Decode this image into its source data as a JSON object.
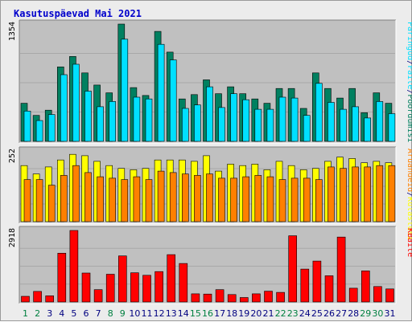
{
  "page_title": "Kasutuspäevad Mai 2021",
  "colors": {
    "title": "#0000cc",
    "panel_bg": "#c0c0c0",
    "visits": "#008060",
    "files": "#00e0ff",
    "hits": "#ffff00",
    "pages": "#ff8000",
    "kbytes": "#ff0000",
    "weekday_label": "#000080",
    "weekend_label": "#008040"
  },
  "chart_data": {
    "type": "bar",
    "x_labels": [
      "1",
      "2",
      "3",
      "4",
      "5",
      "6",
      "7",
      "8",
      "9",
      "10",
      "11",
      "12",
      "13",
      "14",
      "15",
      "16",
      "17",
      "18",
      "19",
      "20",
      "21",
      "22",
      "23",
      "24",
      "25",
      "26",
      "27",
      "28",
      "29",
      "30",
      "31"
    ],
    "weekend_days": [
      "1",
      "2",
      "8",
      "9",
      "15",
      "16",
      "22",
      "23",
      "29",
      "30"
    ],
    "panels": [
      {
        "ymax_label": "1354",
        "right_labels": [
          {
            "text": "Päringud",
            "color": "#00e0ff"
          },
          {
            "text": "/",
            "color": "#000080"
          },
          {
            "text": "Faile",
            "color": "#00e0ff"
          },
          {
            "text": "/",
            "color": "#000080"
          },
          {
            "text": "Pöördumisi",
            "color": "#008060"
          }
        ],
        "ymax": 1354,
        "series": [
          {
            "name": "Päringud",
            "values": [
              440,
              300,
              360,
              860,
              980,
              790,
              650,
              560,
              1354,
              620,
              530,
              1270,
              1030,
              490,
              540,
              710,
              550,
              630,
              550,
              490,
              440,
              610,
              610,
              380,
              790,
              610,
              500,
              610,
              330,
              560,
              440
            ]
          },
          {
            "name": "Faile",
            "values": [
              350,
              240,
              310,
              770,
              890,
              580,
              400,
              460,
              1180,
              510,
              490,
              1120,
              940,
              380,
              420,
              630,
              390,
              550,
              480,
              370,
              370,
              510,
              500,
              300,
              670,
              450,
              370,
              400,
              270,
              460,
              320
            ]
          }
        ]
      },
      {
        "ymax_label": "252",
        "right_labels": [
          {
            "text": "Aruandeid",
            "color": "#ff8000"
          },
          {
            "text": "/",
            "color": "#000080"
          },
          {
            "text": "Külastusi",
            "color": "#ffff00"
          }
        ],
        "ymax": 252,
        "series": [
          {
            "name": "Külastusi",
            "values": [
              200,
              170,
              195,
              220,
              240,
              235,
              215,
              200,
              190,
              185,
              190,
              220,
              220,
              220,
              215,
              235,
              180,
              205,
              200,
              205,
              185,
              215,
              200,
              185,
              190,
              215,
              230,
              225,
              210,
              215,
              210
            ]
          },
          {
            "name": "Aruandeid",
            "values": [
              150,
              150,
              130,
              165,
              200,
              175,
              160,
              155,
              150,
              160,
              150,
              180,
              175,
              170,
              165,
              170,
              155,
              155,
              160,
              165,
              160,
              150,
              155,
              155,
              150,
              195,
              190,
              195,
              195,
              200,
              200
            ]
          }
        ]
      },
      {
        "ymax_label": "2918",
        "right_labels": [
          {
            "text": "KBaite",
            "color": "#ff0000"
          }
        ],
        "ymax": 2918,
        "series": [
          {
            "name": "KBaite",
            "values": [
              230,
              430,
              250,
              1990,
              2918,
              1180,
              500,
              1130,
              1880,
              1190,
              1090,
              1240,
              1930,
              1570,
              330,
              320,
              500,
              300,
              180,
              330,
              440,
              390,
              2700,
              1340,
              1670,
              1070,
              2650,
              560,
              1270,
              630,
              530
            ]
          }
        ]
      }
    ]
  }
}
